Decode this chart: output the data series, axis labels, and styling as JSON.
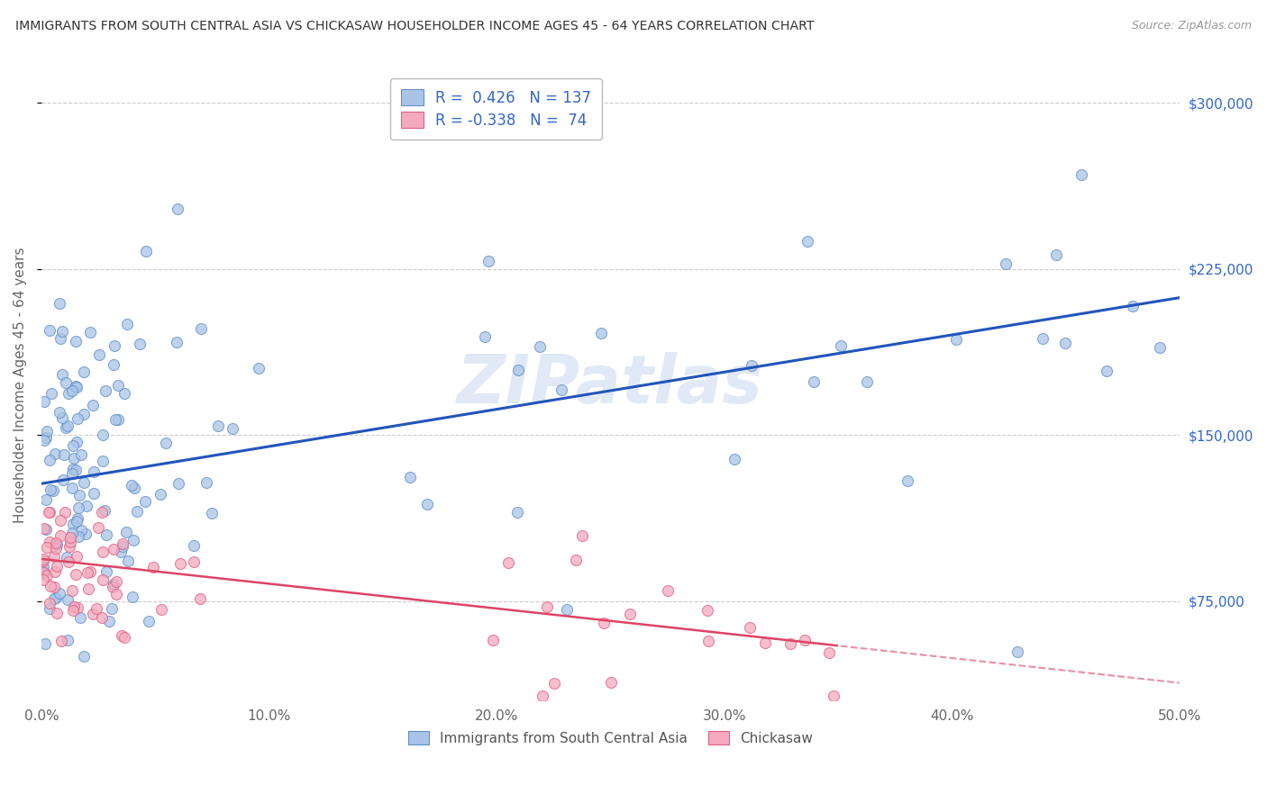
{
  "title": "IMMIGRANTS FROM SOUTH CENTRAL ASIA VS CHICKASAW HOUSEHOLDER INCOME AGES 45 - 64 YEARS CORRELATION CHART",
  "source": "Source: ZipAtlas.com",
  "ylabel": "Householder Income Ages 45 - 64 years",
  "blue_R": 0.426,
  "blue_N": 137,
  "pink_R": -0.338,
  "pink_N": 74,
  "blue_color": "#aac4e8",
  "pink_color": "#f4aabe",
  "blue_edge_color": "#6090c8",
  "pink_edge_color": "#e06080",
  "blue_line_color": "#2255bb",
  "pink_line_color": "#dd4466",
  "xmin": 0.0,
  "xmax": 50.0,
  "ymin": 30000,
  "ymax": 315000,
  "yticks": [
    75000,
    150000,
    225000,
    300000
  ],
  "ytick_labels": [
    "$75,000",
    "$150,000",
    "$225,000",
    "$300,000"
  ],
  "xticks": [
    0.0,
    10.0,
    20.0,
    30.0,
    40.0,
    50.0
  ],
  "xtick_labels": [
    "0.0%",
    "10.0%",
    "20.0%",
    "30.0%",
    "40.0%",
    "50.0%"
  ],
  "watermark": "ZIPatlas",
  "legend_label_blue": "Immigrants from South Central Asia",
  "legend_label_pink": "Chickasaw",
  "blue_line_x0": 0.0,
  "blue_line_y0": 128000,
  "blue_line_x1": 50.0,
  "blue_line_y1": 212000,
  "pink_line_x0": 0.0,
  "pink_line_y0": 94000,
  "pink_line_x1": 50.0,
  "pink_line_y1": 38000,
  "pink_solid_end_x": 35.0
}
